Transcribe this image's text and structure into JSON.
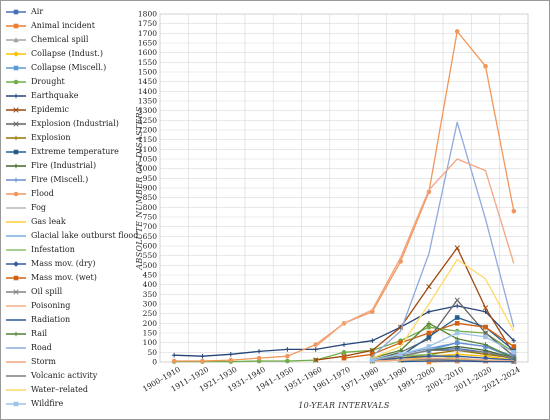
{
  "chart_data": {
    "type": "line",
    "title": "",
    "xlabel": "10-YEAR INTERVALS",
    "ylabel": "ABSOLUTE NUMBER OF DISASTERS",
    "ylim": [
      0,
      1800
    ],
    "ytick_step": 50,
    "grid": true,
    "legend_position": "left",
    "categories": [
      "1900–1910",
      "1911–1920",
      "1921–1930",
      "1931–1940",
      "1941–1950",
      "1951–1960",
      "1961–1970",
      "1971–1980",
      "1981–1990",
      "1991–2000",
      "2001–2010",
      "2011–2020",
      "2021–2024"
    ],
    "series": [
      {
        "name": "Air",
        "color": "#4a6fb5",
        "marker": "square",
        "values": [
          null,
          null,
          null,
          null,
          null,
          null,
          null,
          10,
          30,
          60,
          70,
          50,
          15
        ]
      },
      {
        "name": "Animal incident",
        "color": "#ed7d31",
        "marker": "square",
        "values": [
          null,
          null,
          null,
          null,
          null,
          null,
          null,
          null,
          null,
          0,
          5,
          5,
          2
        ]
      },
      {
        "name": "Chemical spill",
        "color": "#a5a5a5",
        "marker": "triangle",
        "values": [
          null,
          null,
          null,
          null,
          null,
          null,
          null,
          5,
          10,
          20,
          15,
          10,
          5
        ]
      },
      {
        "name": "Collapse (Indust.)",
        "color": "#ffc000",
        "marker": "diamond",
        "values": [
          null,
          null,
          null,
          null,
          null,
          null,
          null,
          5,
          10,
          30,
          40,
          30,
          10
        ]
      },
      {
        "name": "Collapse (Miscell.)",
        "color": "#5b9bd5",
        "marker": "square",
        "values": [
          null,
          null,
          null,
          null,
          null,
          null,
          null,
          10,
          30,
          60,
          100,
          80,
          20
        ]
      },
      {
        "name": "Drought",
        "color": "#70ad47",
        "marker": "circle",
        "values": [
          2,
          2,
          2,
          5,
          5,
          10,
          50,
          60,
          110,
          180,
          160,
          150,
          50
        ]
      },
      {
        "name": "Earthquake",
        "color": "#264478",
        "marker": "plus",
        "values": [
          35,
          30,
          40,
          55,
          65,
          65,
          90,
          110,
          180,
          260,
          290,
          260,
          110
        ]
      },
      {
        "name": "Epidemic",
        "color": "#9e480e",
        "marker": "x",
        "values": [
          null,
          null,
          null,
          null,
          null,
          10,
          30,
          60,
          180,
          390,
          590,
          280,
          40
        ]
      },
      {
        "name": "Explosion (Industrial)",
        "color": "#636363",
        "marker": "x",
        "values": [
          null,
          null,
          null,
          null,
          null,
          null,
          null,
          10,
          50,
          120,
          320,
          150,
          30
        ]
      },
      {
        "name": "Explosion",
        "color": "#997300",
        "marker": "plus",
        "values": [
          null,
          null,
          null,
          null,
          null,
          null,
          null,
          5,
          20,
          40,
          60,
          40,
          20
        ]
      },
      {
        "name": "Extreme temperature",
        "color": "#255e91",
        "marker": "square",
        "values": [
          null,
          null,
          null,
          null,
          null,
          null,
          null,
          10,
          30,
          130,
          230,
          180,
          60
        ]
      },
      {
        "name": "Fire (Industrial)",
        "color": "#43682b",
        "marker": "plus",
        "values": [
          null,
          null,
          null,
          null,
          null,
          null,
          null,
          10,
          30,
          60,
          80,
          60,
          20
        ]
      },
      {
        "name": "Fire (Miscell.)",
        "color": "#698ed0",
        "marker": "plus",
        "values": [
          null,
          null,
          null,
          null,
          null,
          null,
          null,
          10,
          40,
          70,
          100,
          80,
          30
        ]
      },
      {
        "name": "Flood",
        "color": "#f1975a",
        "marker": "circle",
        "values": [
          5,
          5,
          10,
          20,
          30,
          90,
          200,
          260,
          520,
          880,
          1710,
          1530,
          780
        ]
      },
      {
        "name": "Fog",
        "color": "#b7b7b7",
        "marker": "none",
        "values": [
          null,
          null,
          null,
          null,
          null,
          null,
          null,
          null,
          null,
          5,
          5,
          5,
          2
        ]
      },
      {
        "name": "Gas leak",
        "color": "#ffcd33",
        "marker": "none",
        "values": [
          null,
          null,
          null,
          null,
          null,
          null,
          null,
          null,
          5,
          10,
          15,
          10,
          5
        ]
      },
      {
        "name": "Glacial lake outburst flood",
        "color": "#7cafdd",
        "marker": "none",
        "values": [
          null,
          null,
          null,
          null,
          null,
          null,
          null,
          null,
          2,
          5,
          5,
          5,
          2
        ]
      },
      {
        "name": "Infestation",
        "color": "#8cc168",
        "marker": "none",
        "values": [
          null,
          null,
          null,
          null,
          null,
          null,
          null,
          10,
          30,
          40,
          20,
          10,
          5
        ]
      },
      {
        "name": "Mass mov. (dry)",
        "color": "#335aa1",
        "marker": "diamond",
        "values": [
          null,
          null,
          null,
          null,
          null,
          null,
          null,
          10,
          20,
          30,
          30,
          20,
          10
        ]
      },
      {
        "name": "Mass mov. (wet)",
        "color": "#d26012",
        "marker": "square",
        "values": [
          null,
          null,
          null,
          null,
          null,
          null,
          20,
          40,
          100,
          150,
          200,
          180,
          80
        ]
      },
      {
        "name": "Oil spill",
        "color": "#848484",
        "marker": "x",
        "values": [
          null,
          null,
          null,
          null,
          null,
          null,
          null,
          5,
          10,
          15,
          10,
          5,
          2
        ]
      },
      {
        "name": "Poisoning",
        "color": "#f4b183",
        "marker": "none",
        "values": [
          null,
          null,
          null,
          null,
          null,
          null,
          null,
          5,
          10,
          20,
          20,
          10,
          5
        ]
      },
      {
        "name": "Radiation",
        "color": "#2f5597",
        "marker": "none",
        "values": [
          null,
          null,
          null,
          null,
          null,
          null,
          null,
          null,
          2,
          5,
          5,
          2,
          1
        ]
      },
      {
        "name": "Rail",
        "color": "#548235",
        "marker": "plus",
        "values": [
          null,
          null,
          null,
          null,
          null,
          null,
          null,
          20,
          60,
          200,
          120,
          90,
          20
        ]
      },
      {
        "name": "Road",
        "color": "#8faadc",
        "marker": "none",
        "values": [
          null,
          null,
          null,
          null,
          null,
          null,
          null,
          30,
          160,
          560,
          1240,
          740,
          180
        ]
      },
      {
        "name": "Storm",
        "color": "#f4a582",
        "marker": "none",
        "values": [
          null,
          null,
          null,
          null,
          null,
          80,
          200,
          270,
          540,
          890,
          1050,
          990,
          510
        ]
      },
      {
        "name": "Volcanic activity",
        "color": "#7f7f7f",
        "marker": "none",
        "values": [
          null,
          null,
          null,
          null,
          null,
          null,
          null,
          10,
          30,
          60,
          60,
          50,
          20
        ]
      },
      {
        "name": "Water–related",
        "color": "#ffd966",
        "marker": "none",
        "values": [
          null,
          null,
          null,
          null,
          null,
          null,
          null,
          20,
          80,
          300,
          530,
          430,
          160
        ]
      },
      {
        "name": "Wildfire",
        "color": "#9dc3e6",
        "marker": "square",
        "values": [
          null,
          null,
          null,
          null,
          null,
          null,
          null,
          10,
          40,
          80,
          150,
          130,
          50
        ]
      }
    ]
  }
}
